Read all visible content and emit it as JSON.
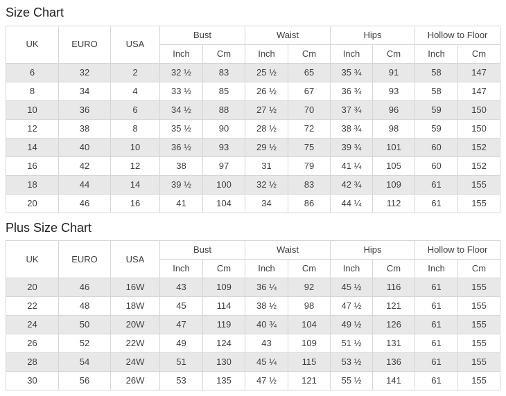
{
  "colors": {
    "bg": "#ffffff",
    "border": "#d6d6d6",
    "row_alt": "#e8e8e8",
    "text": "#3f3f3f",
    "title": "#222222"
  },
  "size_chart": {
    "title": "Size Chart",
    "column_groups": {
      "uk": "UK",
      "euro": "EURO",
      "usa": "USA",
      "bust": "Bust",
      "waist": "Waist",
      "hips": "Hips",
      "hollow": "Hollow to Floor"
    },
    "sub_headers": {
      "inch": "Inch",
      "cm": "Cm"
    },
    "rows": [
      [
        "6",
        "32",
        "2",
        "32 ½",
        "83",
        "25 ½",
        "65",
        "35 ¾",
        "91",
        "58",
        "147"
      ],
      [
        "8",
        "34",
        "4",
        "33 ½",
        "85",
        "26 ½",
        "67",
        "36 ¾",
        "93",
        "58",
        "147"
      ],
      [
        "10",
        "36",
        "6",
        "34 ½",
        "88",
        "27 ½",
        "70",
        "37 ¾",
        "96",
        "59",
        "150"
      ],
      [
        "12",
        "38",
        "8",
        "35 ½",
        "90",
        "28 ½",
        "72",
        "38 ¾",
        "98",
        "59",
        "150"
      ],
      [
        "14",
        "40",
        "10",
        "36 ½",
        "93",
        "29 ½",
        "75",
        "39 ¾",
        "101",
        "60",
        "152"
      ],
      [
        "16",
        "42",
        "12",
        "38",
        "97",
        "31",
        "79",
        "41 ¼",
        "105",
        "60",
        "152"
      ],
      [
        "18",
        "44",
        "14",
        "39 ½",
        "100",
        "32 ½",
        "83",
        "42 ¾",
        "109",
        "61",
        "155"
      ],
      [
        "20",
        "46",
        "16",
        "41",
        "104",
        "34",
        "86",
        "44 ¼",
        "112",
        "61",
        "155"
      ]
    ]
  },
  "plus_size_chart": {
    "title": "Plus Size Chart",
    "column_groups": {
      "uk": "UK",
      "euro": "EURO",
      "usa": "USA",
      "bust": "Bust",
      "waist": "Waist",
      "hips": "Hips",
      "hollow": "Hollow to Floor"
    },
    "sub_headers": {
      "inch": "Inch",
      "cm": "Cm"
    },
    "rows": [
      [
        "20",
        "46",
        "16W",
        "43",
        "109",
        "36 ¼",
        "92",
        "45 ½",
        "116",
        "61",
        "155"
      ],
      [
        "22",
        "48",
        "18W",
        "45",
        "114",
        "38 ½",
        "98",
        "47 ½",
        "121",
        "61",
        "155"
      ],
      [
        "24",
        "50",
        "20W",
        "47",
        "119",
        "40 ¾",
        "104",
        "49 ½",
        "126",
        "61",
        "155"
      ],
      [
        "26",
        "52",
        "22W",
        "49",
        "124",
        "43",
        "109",
        "51 ½",
        "131",
        "61",
        "155"
      ],
      [
        "28",
        "54",
        "24W",
        "51",
        "130",
        "45 ¼",
        "115",
        "53 ½",
        "136",
        "61",
        "155"
      ],
      [
        "30",
        "56",
        "26W",
        "53",
        "135",
        "47 ½",
        "121",
        "55 ½",
        "141",
        "61",
        "155"
      ]
    ]
  }
}
